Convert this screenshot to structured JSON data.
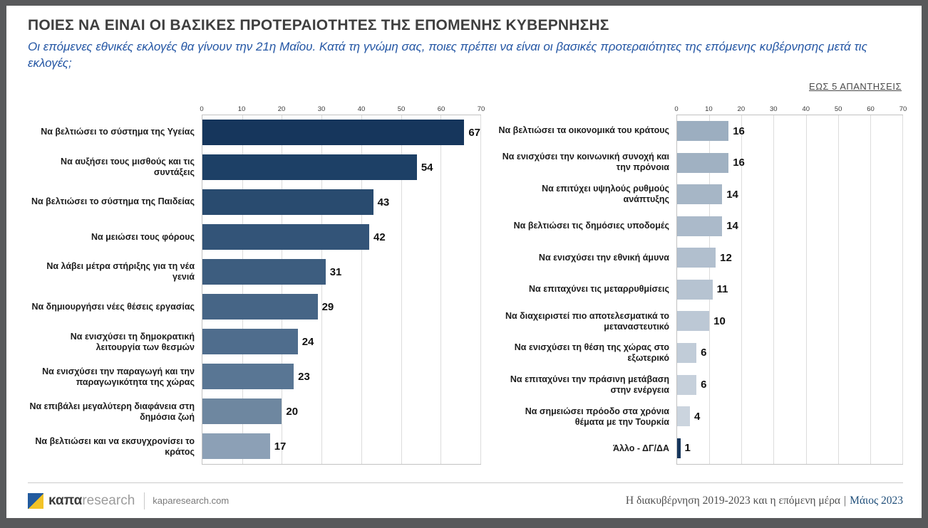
{
  "header": {
    "title": "ΠΟΙΕΣ ΝΑ ΕΙΝΑΙ ΟΙ ΒΑΣΙΚΕΣ ΠΡΟΤΕΡΑΙΟΤΗΤΕΣ ΤΗΣ ΕΠΟΜΕΝΗΣ ΚΥΒΕΡΝΗΣΗΣ",
    "subtitle": "Οι επόμενες εθνικές εκλογές θα γίνουν την 21η Μαΐου. Κατά τη γνώμη σας, ποιες πρέπει να είναι οι βασικές προτεραιότητες της επόμενης κυβέρνησης μετά τις εκλογές;",
    "answers_note": "ΕΩΣ 5 ΑΠΑΝΤΗΣΕΙΣ"
  },
  "chart_data": [
    {
      "type": "bar",
      "orientation": "horizontal",
      "xlim": [
        0,
        70
      ],
      "ticks": [
        0,
        10,
        20,
        30,
        40,
        50,
        60,
        70
      ],
      "grid": true,
      "legend": "none",
      "categories": [
        "Να βελτιώσει το σύστημα της Υγείας",
        "Να αυξήσει τους μισθούς και τις συντάξεις",
        "Να βελτιώσει το σύστημα της Παιδείας",
        "Να μειώσει τους φόρους",
        "Να λάβει μέτρα στήριξης για τη νέα γενιά",
        "Να δημιουργήσει νέες θέσεις εργασίας",
        "Να ενισχύσει τη δημοκρατική λειτουργία των θεσμών",
        "Να ενισχύσει την παραγωγή και την παραγωγικότητα της χώρας",
        "Να επιβάλει μεγαλύτερη διαφάνεια στη δημόσια ζωή",
        "Να βελτιώσει και να εκσυγχρονίσει το κράτος"
      ],
      "values": [
        67,
        54,
        43,
        42,
        31,
        29,
        24,
        23,
        20,
        17
      ],
      "bar_colors": [
        "#16365C",
        "#1D4066",
        "#294B6F",
        "#335478",
        "#3D5D7F",
        "#466586",
        "#4F6D8D",
        "#597694",
        "#6E87A0",
        "#8CA0B6"
      ]
    },
    {
      "type": "bar",
      "orientation": "horizontal",
      "xlim": [
        0,
        70
      ],
      "ticks": [
        0,
        10,
        20,
        30,
        40,
        50,
        60,
        70
      ],
      "grid": true,
      "legend": "none",
      "categories": [
        "Να βελτιώσει τα οικονομικά του κράτους",
        "Να ενισχύσει την κοινωνική συνοχή και την πρόνοια",
        "Να επιτύχει υψηλούς ρυθμούς ανάπτυξης",
        "Να βελτιώσει τις δημόσιες υποδομές",
        "Να ενισχύσει την εθνική άμυνα",
        "Να επιταχύνει τις μεταρρυθμίσεις",
        "Να διαχειριστεί πιο αποτελεσματικά το μεταναστευτικό",
        "Να ενισχύσει τη θέση της χώρας στο εξωτερικό",
        "Να επιταχύνει την πράσινη μετάβαση στην ενέργεια",
        "Να σημειώσει πρόοδο στα χρόνια θέματα με την Τουρκία",
        "Άλλο - ΔΓ/ΔΑ"
      ],
      "values": [
        16,
        16,
        14,
        14,
        12,
        11,
        10,
        6,
        6,
        4,
        1
      ],
      "bar_colors": [
        "#9CAEC0",
        "#A0B1C2",
        "#A6B6C6",
        "#ABBACA",
        "#B1BFCE",
        "#B6C3D1",
        "#BCC8D5",
        "#C1CCD8",
        "#C6D0DB",
        "#CBD4DE",
        "#16365C"
      ]
    }
  ],
  "footer": {
    "logo_text_bold": "καπα",
    "logo_text_light": "research",
    "website": "kaparesearch.com",
    "source_title": "Η διακυβέρνηση 2019-2023 και η επόμενη μέρα",
    "separator": "|",
    "date": "Μάιος 2023"
  },
  "colors": {
    "accent_blue": "#2456A4",
    "dark_navy": "#16365C",
    "frame_gray": "#58595B"
  }
}
